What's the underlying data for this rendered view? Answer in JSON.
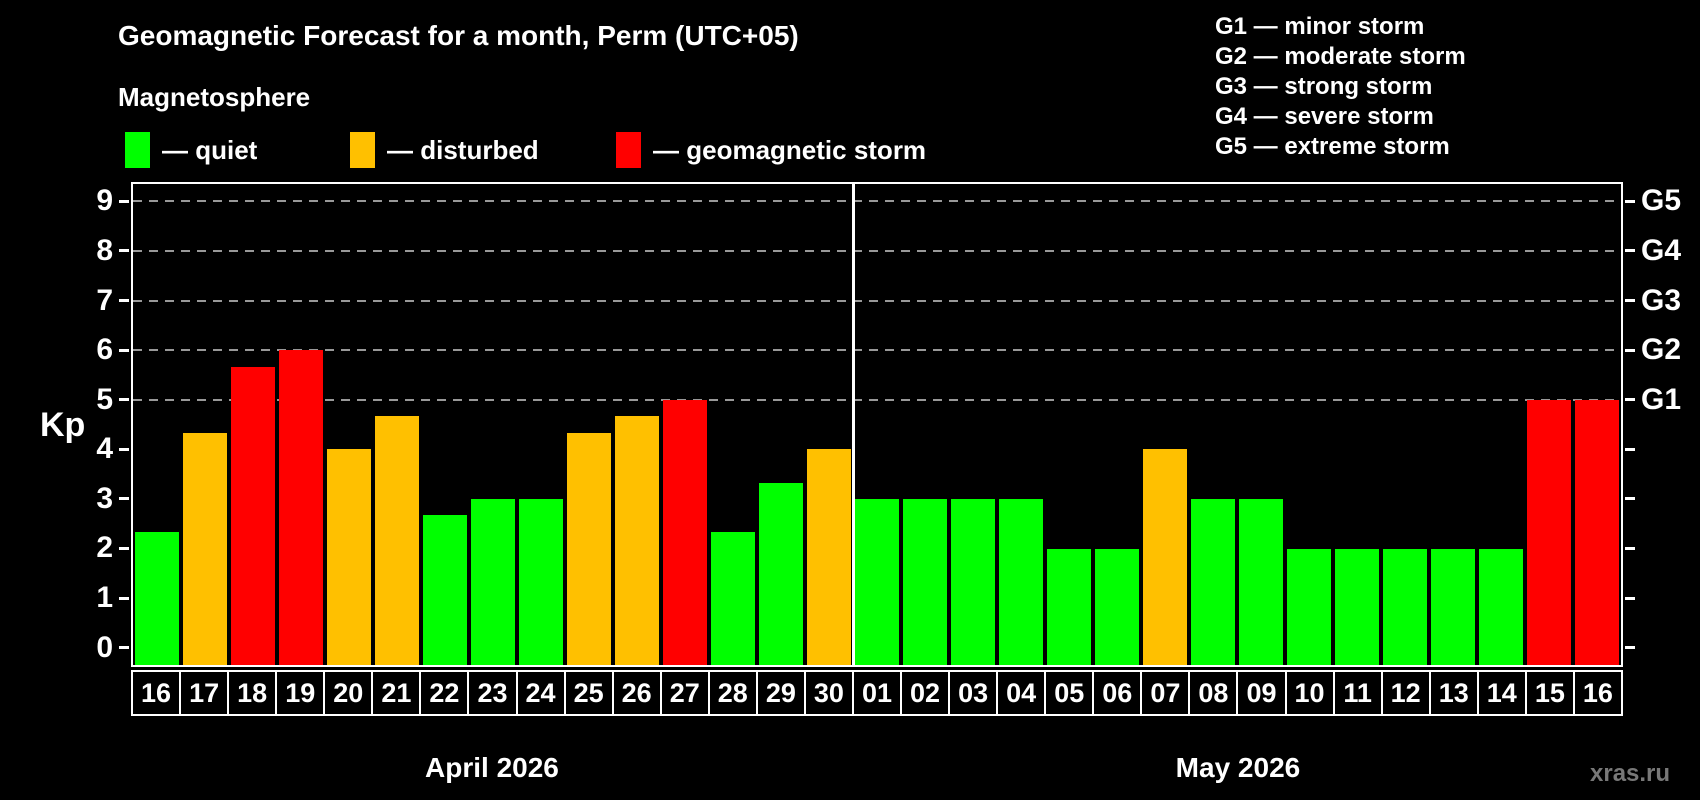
{
  "title": "Geomagnetic Forecast for a month, Perm (UTC+05)",
  "subtitle": "Magnetosphere",
  "legend": {
    "items": [
      {
        "name": "quiet",
        "label": "— quiet",
        "color": "#00ff00"
      },
      {
        "name": "disturbed",
        "label": "— disturbed",
        "color": "#ffc000"
      },
      {
        "name": "storm",
        "label": "— geomagnetic storm",
        "color": "#ff0000"
      }
    ]
  },
  "g_scale_legend": {
    "items": [
      {
        "label": "G1 — minor storm"
      },
      {
        "label": "G2 — moderate storm"
      },
      {
        "label": "G3 — strong storm"
      },
      {
        "label": "G4 — severe storm"
      },
      {
        "label": "G5 — extreme storm"
      }
    ]
  },
  "watermark": "xras.ru",
  "chart_data": {
    "type": "bar",
    "title": "Geomagnetic Forecast for a month, Perm (UTC+05)",
    "ylabel": "Kp",
    "ylim": [
      0,
      9
    ],
    "yticks": [
      0,
      1,
      2,
      3,
      4,
      5,
      6,
      7,
      8,
      9
    ],
    "gridlines_at": [
      5,
      6,
      7,
      8,
      9
    ],
    "grid": "dashed horizontal at storm levels only",
    "right_axis": [
      {
        "kp": 5,
        "label": "G1"
      },
      {
        "kp": 6,
        "label": "G2"
      },
      {
        "kp": 7,
        "label": "G3"
      },
      {
        "kp": 8,
        "label": "G4"
      },
      {
        "kp": 9,
        "label": "G5"
      }
    ],
    "status_colors": {
      "quiet": "#00ff00",
      "disturbed": "#ffc000",
      "storm": "#ff0000"
    },
    "groups": [
      {
        "label": "April 2026",
        "days": [
          {
            "day": "16",
            "kp": 2.33,
            "status": "quiet"
          },
          {
            "day": "17",
            "kp": 4.33,
            "status": "disturbed"
          },
          {
            "day": "18",
            "kp": 5.67,
            "status": "storm"
          },
          {
            "day": "19",
            "kp": 6.0,
            "status": "storm"
          },
          {
            "day": "20",
            "kp": 4.0,
            "status": "disturbed"
          },
          {
            "day": "21",
            "kp": 4.67,
            "status": "disturbed"
          },
          {
            "day": "22",
            "kp": 2.67,
            "status": "quiet"
          },
          {
            "day": "23",
            "kp": 3.0,
            "status": "quiet"
          },
          {
            "day": "24",
            "kp": 3.0,
            "status": "quiet"
          },
          {
            "day": "25",
            "kp": 4.33,
            "status": "disturbed"
          },
          {
            "day": "26",
            "kp": 4.67,
            "status": "disturbed"
          },
          {
            "day": "27",
            "kp": 5.0,
            "status": "storm"
          },
          {
            "day": "28",
            "kp": 2.33,
            "status": "quiet"
          },
          {
            "day": "29",
            "kp": 3.33,
            "status": "quiet"
          },
          {
            "day": "30",
            "kp": 4.0,
            "status": "disturbed"
          }
        ]
      },
      {
        "label": "May 2026",
        "days": [
          {
            "day": "01",
            "kp": 3.0,
            "status": "quiet"
          },
          {
            "day": "02",
            "kp": 3.0,
            "status": "quiet"
          },
          {
            "day": "03",
            "kp": 3.0,
            "status": "quiet"
          },
          {
            "day": "04",
            "kp": 3.0,
            "status": "quiet"
          },
          {
            "day": "05",
            "kp": 2.0,
            "status": "quiet"
          },
          {
            "day": "06",
            "kp": 2.0,
            "status": "quiet"
          },
          {
            "day": "07",
            "kp": 4.0,
            "status": "disturbed"
          },
          {
            "day": "08",
            "kp": 3.0,
            "status": "quiet"
          },
          {
            "day": "09",
            "kp": 3.0,
            "status": "quiet"
          },
          {
            "day": "10",
            "kp": 2.0,
            "status": "quiet"
          },
          {
            "day": "11",
            "kp": 2.0,
            "status": "quiet"
          },
          {
            "day": "12",
            "kp": 2.0,
            "status": "quiet"
          },
          {
            "day": "13",
            "kp": 2.0,
            "status": "quiet"
          },
          {
            "day": "14",
            "kp": 2.0,
            "status": "quiet"
          },
          {
            "day": "15",
            "kp": 5.0,
            "status": "storm"
          },
          {
            "day": "16",
            "kp": 5.0,
            "status": "storm"
          }
        ]
      }
    ]
  }
}
